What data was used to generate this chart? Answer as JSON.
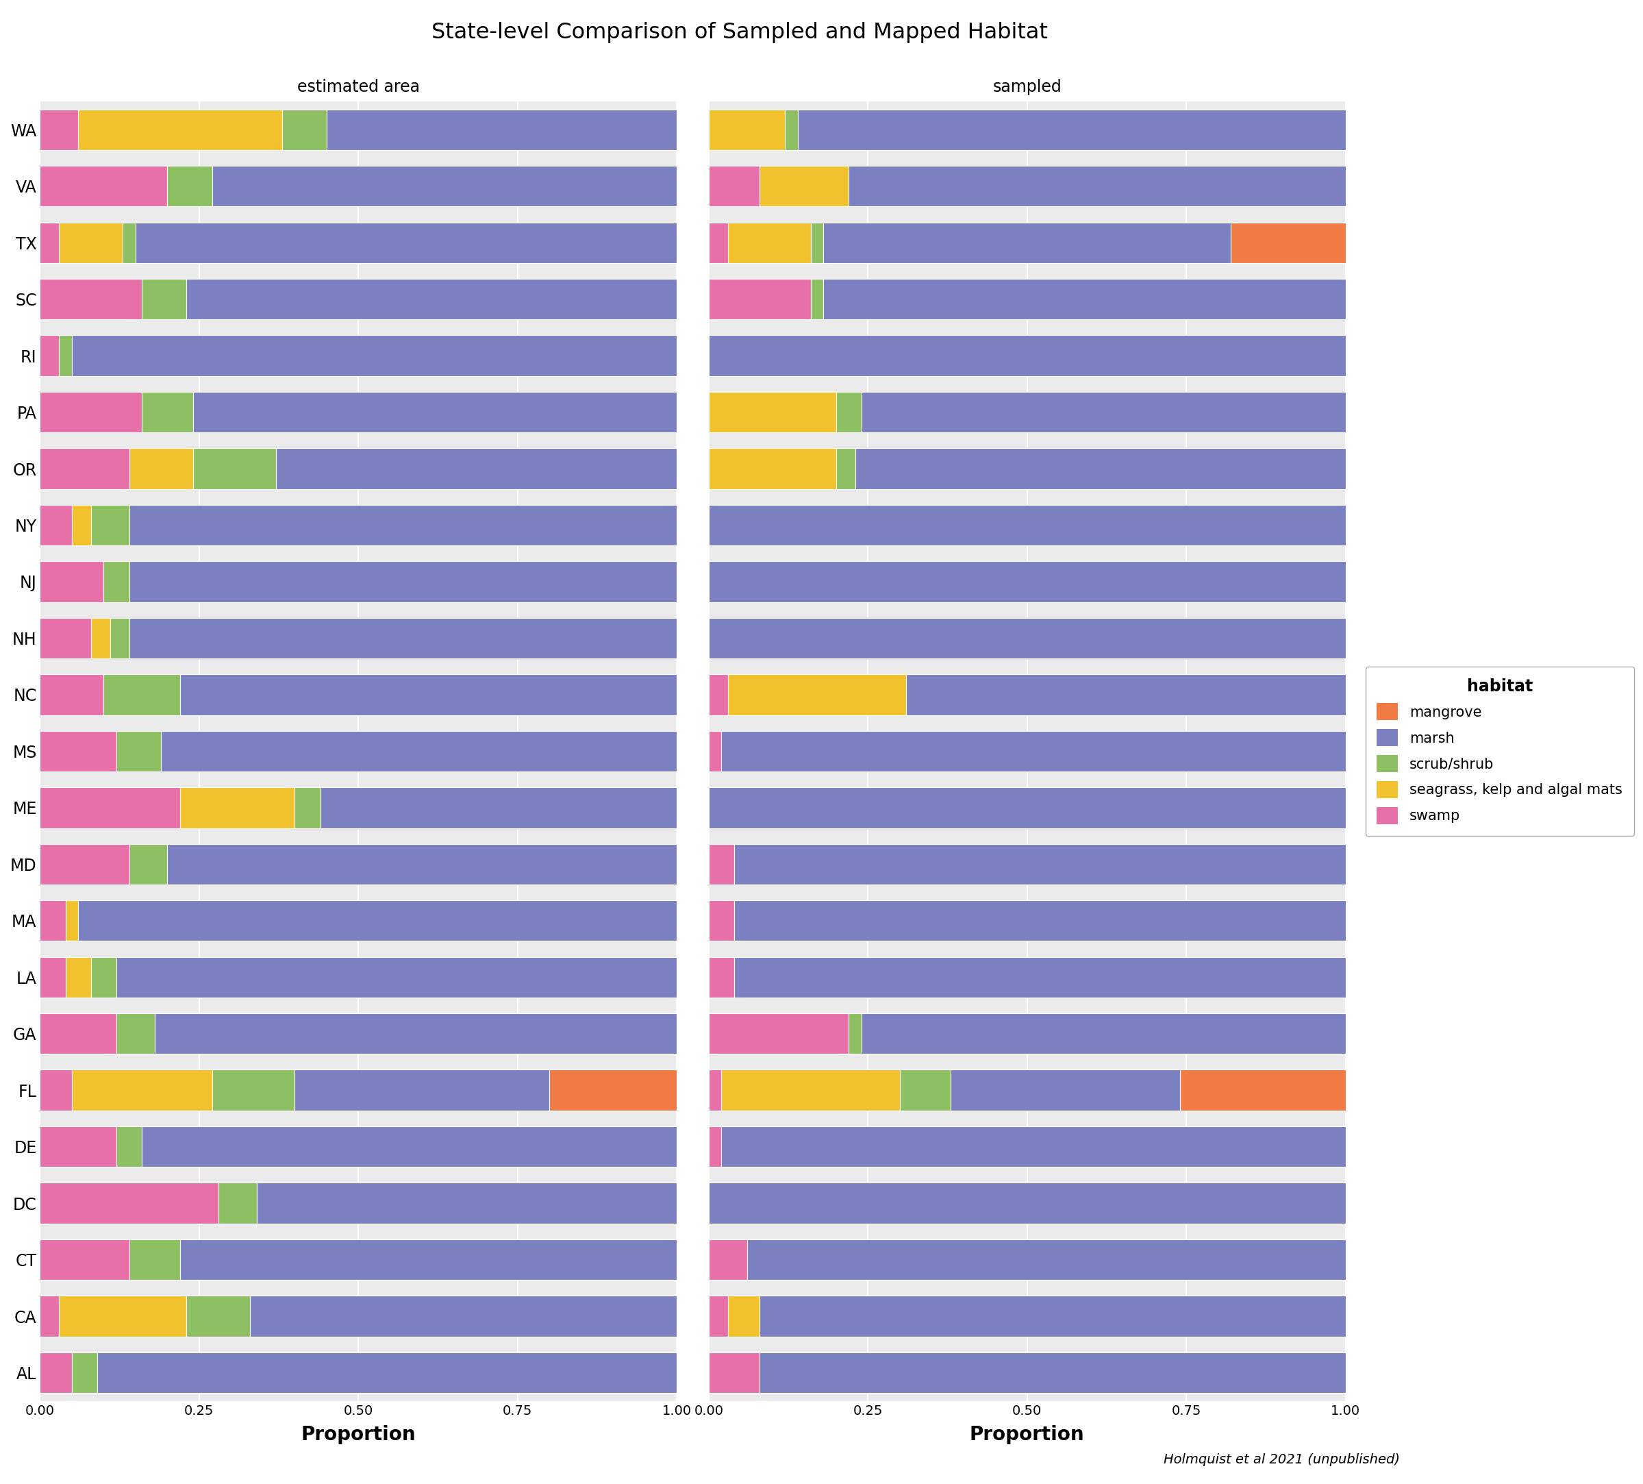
{
  "title": "State-level Comparison of Sampled and Mapped Habitat",
  "states": [
    "WA",
    "VA",
    "TX",
    "SC",
    "RI",
    "PA",
    "OR",
    "NY",
    "NJ",
    "NH",
    "NC",
    "MS",
    "ME",
    "MD",
    "MA",
    "LA",
    "GA",
    "FL",
    "DE",
    "DC",
    "CT",
    "CA",
    "AL"
  ],
  "habitats": [
    "mangrove",
    "marsh",
    "scrub/shrub",
    "seagrass, kelp and algal mats",
    "swamp"
  ],
  "colors": {
    "mangrove": "#F07B45",
    "marsh": "#7B80C0",
    "scrub/shrub": "#8DC063",
    "seagrass, kelp and algal mats": "#F2C12E",
    "swamp": "#E870A8"
  },
  "estimated_area": {
    "WA": {
      "swamp": 0.06,
      "seagrass, kelp and algal mats": 0.32,
      "scrub/shrub": 0.07,
      "marsh": 0.55,
      "mangrove": 0.0
    },
    "VA": {
      "swamp": 0.2,
      "seagrass, kelp and algal mats": 0.0,
      "scrub/shrub": 0.07,
      "marsh": 0.73,
      "mangrove": 0.0
    },
    "TX": {
      "swamp": 0.03,
      "seagrass, kelp and algal mats": 0.1,
      "scrub/shrub": 0.02,
      "marsh": 0.85,
      "mangrove": 0.0
    },
    "SC": {
      "swamp": 0.16,
      "seagrass, kelp and algal mats": 0.0,
      "scrub/shrub": 0.07,
      "marsh": 0.77,
      "mangrove": 0.0
    },
    "RI": {
      "swamp": 0.03,
      "seagrass, kelp and algal mats": 0.0,
      "scrub/shrub": 0.02,
      "marsh": 0.95,
      "mangrove": 0.0
    },
    "PA": {
      "swamp": 0.16,
      "seagrass, kelp and algal mats": 0.0,
      "scrub/shrub": 0.08,
      "marsh": 0.76,
      "mangrove": 0.0
    },
    "OR": {
      "swamp": 0.14,
      "seagrass, kelp and algal mats": 0.1,
      "scrub/shrub": 0.13,
      "marsh": 0.63,
      "mangrove": 0.0
    },
    "NY": {
      "swamp": 0.05,
      "seagrass, kelp and algal mats": 0.03,
      "scrub/shrub": 0.06,
      "marsh": 0.86,
      "mangrove": 0.0
    },
    "NJ": {
      "swamp": 0.1,
      "seagrass, kelp and algal mats": 0.0,
      "scrub/shrub": 0.04,
      "marsh": 0.86,
      "mangrove": 0.0
    },
    "NH": {
      "swamp": 0.08,
      "seagrass, kelp and algal mats": 0.03,
      "scrub/shrub": 0.03,
      "marsh": 0.86,
      "mangrove": 0.0
    },
    "NC": {
      "swamp": 0.1,
      "seagrass, kelp and algal mats": 0.0,
      "scrub/shrub": 0.12,
      "marsh": 0.78,
      "mangrove": 0.0
    },
    "MS": {
      "swamp": 0.12,
      "seagrass, kelp and algal mats": 0.0,
      "scrub/shrub": 0.07,
      "marsh": 0.81,
      "mangrove": 0.0
    },
    "ME": {
      "swamp": 0.22,
      "seagrass, kelp and algal mats": 0.18,
      "scrub/shrub": 0.04,
      "marsh": 0.56,
      "mangrove": 0.0
    },
    "MD": {
      "swamp": 0.14,
      "seagrass, kelp and algal mats": 0.0,
      "scrub/shrub": 0.06,
      "marsh": 0.8,
      "mangrove": 0.0
    },
    "MA": {
      "swamp": 0.04,
      "seagrass, kelp and algal mats": 0.02,
      "scrub/shrub": 0.0,
      "marsh": 0.94,
      "mangrove": 0.0
    },
    "LA": {
      "swamp": 0.04,
      "seagrass, kelp and algal mats": 0.04,
      "scrub/shrub": 0.04,
      "marsh": 0.88,
      "mangrove": 0.0
    },
    "GA": {
      "swamp": 0.12,
      "seagrass, kelp and algal mats": 0.0,
      "scrub/shrub": 0.06,
      "marsh": 0.82,
      "mangrove": 0.0
    },
    "FL": {
      "swamp": 0.05,
      "seagrass, kelp and algal mats": 0.22,
      "scrub/shrub": 0.13,
      "marsh": 0.4,
      "mangrove": 0.2
    },
    "DE": {
      "swamp": 0.12,
      "seagrass, kelp and algal mats": 0.0,
      "scrub/shrub": 0.04,
      "marsh": 0.84,
      "mangrove": 0.0
    },
    "DC": {
      "swamp": 0.28,
      "seagrass, kelp and algal mats": 0.0,
      "scrub/shrub": 0.06,
      "marsh": 0.66,
      "mangrove": 0.0
    },
    "CT": {
      "swamp": 0.14,
      "seagrass, kelp and algal mats": 0.0,
      "scrub/shrub": 0.08,
      "marsh": 0.78,
      "mangrove": 0.0
    },
    "CA": {
      "swamp": 0.03,
      "seagrass, kelp and algal mats": 0.2,
      "scrub/shrub": 0.1,
      "marsh": 0.67,
      "mangrove": 0.0
    },
    "AL": {
      "swamp": 0.05,
      "seagrass, kelp and algal mats": 0.0,
      "scrub/shrub": 0.04,
      "marsh": 0.91,
      "mangrove": 0.0
    }
  },
  "sampled": {
    "WA": {
      "swamp": 0.0,
      "seagrass, kelp and algal mats": 0.12,
      "scrub/shrub": 0.02,
      "marsh": 0.86,
      "mangrove": 0.0
    },
    "VA": {
      "swamp": 0.08,
      "seagrass, kelp and algal mats": 0.14,
      "scrub/shrub": 0.0,
      "marsh": 0.78,
      "mangrove": 0.0
    },
    "TX": {
      "swamp": 0.03,
      "seagrass, kelp and algal mats": 0.13,
      "scrub/shrub": 0.02,
      "marsh": 0.64,
      "mangrove": 0.18
    },
    "SC": {
      "swamp": 0.16,
      "seagrass, kelp and algal mats": 0.0,
      "scrub/shrub": 0.02,
      "marsh": 0.82,
      "mangrove": 0.0
    },
    "RI": {
      "swamp": 0.0,
      "seagrass, kelp and algal mats": 0.0,
      "scrub/shrub": 0.0,
      "marsh": 1.0,
      "mangrove": 0.0
    },
    "PA": {
      "swamp": 0.0,
      "seagrass, kelp and algal mats": 0.2,
      "scrub/shrub": 0.04,
      "marsh": 0.76,
      "mangrove": 0.0
    },
    "OR": {
      "swamp": 0.0,
      "seagrass, kelp and algal mats": 0.2,
      "scrub/shrub": 0.03,
      "marsh": 0.77,
      "mangrove": 0.0
    },
    "NY": {
      "swamp": 0.0,
      "seagrass, kelp and algal mats": 0.0,
      "scrub/shrub": 0.0,
      "marsh": 1.0,
      "mangrove": 0.0
    },
    "NJ": {
      "swamp": 0.0,
      "seagrass, kelp and algal mats": 0.0,
      "scrub/shrub": 0.0,
      "marsh": 1.0,
      "mangrove": 0.0
    },
    "NH": {
      "swamp": 0.0,
      "seagrass, kelp and algal mats": 0.0,
      "scrub/shrub": 0.0,
      "marsh": 1.0,
      "mangrove": 0.0
    },
    "NC": {
      "swamp": 0.03,
      "seagrass, kelp and algal mats": 0.28,
      "scrub/shrub": 0.0,
      "marsh": 0.69,
      "mangrove": 0.0
    },
    "MS": {
      "swamp": 0.02,
      "seagrass, kelp and algal mats": 0.0,
      "scrub/shrub": 0.0,
      "marsh": 0.98,
      "mangrove": 0.0
    },
    "ME": {
      "swamp": 0.0,
      "seagrass, kelp and algal mats": 0.0,
      "scrub/shrub": 0.0,
      "marsh": 1.0,
      "mangrove": 0.0
    },
    "MD": {
      "swamp": 0.04,
      "seagrass, kelp and algal mats": 0.0,
      "scrub/shrub": 0.0,
      "marsh": 0.96,
      "mangrove": 0.0
    },
    "MA": {
      "swamp": 0.04,
      "seagrass, kelp and algal mats": 0.0,
      "scrub/shrub": 0.0,
      "marsh": 0.96,
      "mangrove": 0.0
    },
    "LA": {
      "swamp": 0.04,
      "seagrass, kelp and algal mats": 0.0,
      "scrub/shrub": 0.0,
      "marsh": 0.96,
      "mangrove": 0.0
    },
    "GA": {
      "swamp": 0.22,
      "seagrass, kelp and algal mats": 0.0,
      "scrub/shrub": 0.02,
      "marsh": 0.76,
      "mangrove": 0.0
    },
    "FL": {
      "swamp": 0.02,
      "seagrass, kelp and algal mats": 0.28,
      "scrub/shrub": 0.08,
      "marsh": 0.36,
      "mangrove": 0.26
    },
    "DE": {
      "swamp": 0.02,
      "seagrass, kelp and algal mats": 0.0,
      "scrub/shrub": 0.0,
      "marsh": 0.98,
      "mangrove": 0.0
    },
    "DC": {
      "swamp": 0.0,
      "seagrass, kelp and algal mats": 0.0,
      "scrub/shrub": 0.0,
      "marsh": 1.0,
      "mangrove": 0.0
    },
    "CT": {
      "swamp": 0.06,
      "seagrass, kelp and algal mats": 0.0,
      "scrub/shrub": 0.0,
      "marsh": 0.94,
      "mangrove": 0.0
    },
    "CA": {
      "swamp": 0.03,
      "seagrass, kelp and algal mats": 0.05,
      "scrub/shrub": 0.0,
      "marsh": 0.92,
      "mangrove": 0.0
    },
    "AL": {
      "swamp": 0.08,
      "seagrass, kelp and algal mats": 0.0,
      "scrub/shrub": 0.0,
      "marsh": 0.92,
      "mangrove": 0.0
    }
  },
  "xlabel": "Proportion",
  "panel_labels": [
    "estimated area",
    "sampled"
  ],
  "legend_title": "habitat",
  "caption": "Holmquist et al 2021 (unpublished)",
  "background_color": "#FFFFFF",
  "panel_bg": "#EBEBEB"
}
